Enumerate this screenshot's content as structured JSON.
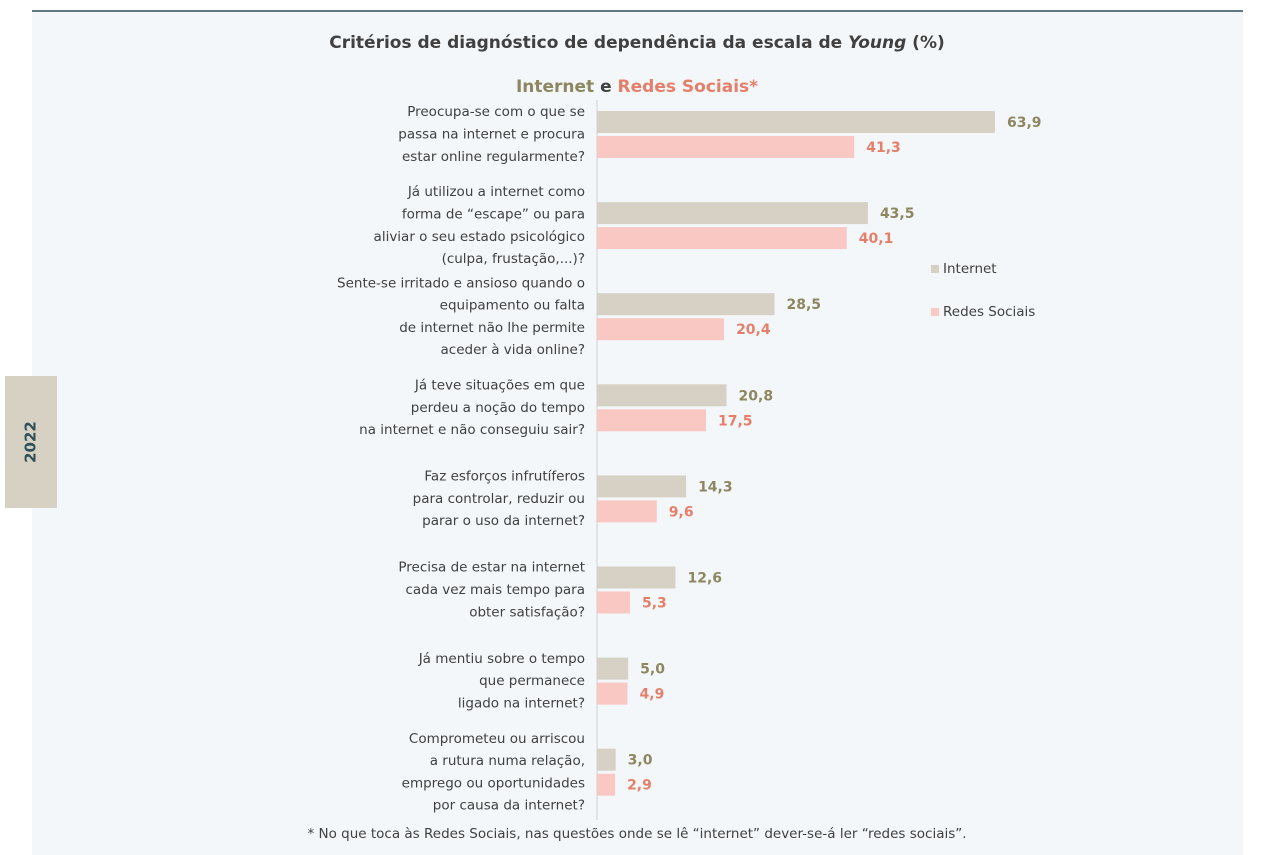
{
  "chart_data": {
    "type": "bar",
    "orientation": "horizontal",
    "title": [
      "Critérios de diagnóstico de dependência da escala de ",
      "Young",
      " (%)"
    ],
    "subtitle": [
      "Internet",
      " e ",
      "Redes Sociais*"
    ],
    "side_label": "2022",
    "footnote": "* No que toca às Redes Sociais, nas questões onde se lê “internet” dever-se-á ler “redes sociais”.",
    "categories": [
      [
        "Preocupa-se com o que se",
        "passa na internet e procura",
        "estar online regularmente?"
      ],
      [
        "Já utilizou a internet como",
        "forma de “escape” ou para",
        "aliviar o seu estado psicológico",
        "(culpa, frustação,...)?"
      ],
      [
        "Sente-se irritado e ansioso quando o",
        "equipamento ou falta",
        "de internet não lhe permite",
        "aceder à vida online?"
      ],
      [
        "Já teve situações em que",
        "perdeu a noção do tempo",
        "na internet  e não conseguiu sair?"
      ],
      [
        "Faz esforços infrutíferos",
        "para controlar, reduzir ou",
        "parar o uso da internet?"
      ],
      [
        "Precisa de estar na internet",
        "cada vez mais tempo para",
        "obter satisfação?"
      ],
      [
        "Já mentiu sobre o tempo",
        "que permanece",
        "ligado na internet?"
      ],
      [
        "Comprometeu ou arriscou",
        "a rutura numa relação,",
        "emprego ou oportunidades",
        "por causa da internet?"
      ]
    ],
    "series": [
      {
        "name": "Internet",
        "color": "#d6d1c4",
        "label_color": "#8c8760",
        "values": [
          63.9,
          43.5,
          28.5,
          20.8,
          14.3,
          12.6,
          5.0,
          3.0
        ],
        "value_labels": [
          "63,9",
          "43,5",
          "28,5",
          "20,8",
          "14,3",
          "12,6",
          "5,0",
          "3,0"
        ]
      },
      {
        "name": "Redes Sociais",
        "color": "#f9c8c2",
        "label_color": "#e57f6a",
        "values": [
          41.3,
          40.1,
          20.4,
          17.5,
          9.6,
          5.3,
          4.9,
          2.9
        ],
        "value_labels": [
          "41,3",
          "40,1",
          "20,4",
          "17,5",
          "9,6",
          "5,3",
          "4,9",
          "2,9"
        ]
      }
    ],
    "xlim": [
      0,
      70
    ],
    "legend": "right"
  }
}
